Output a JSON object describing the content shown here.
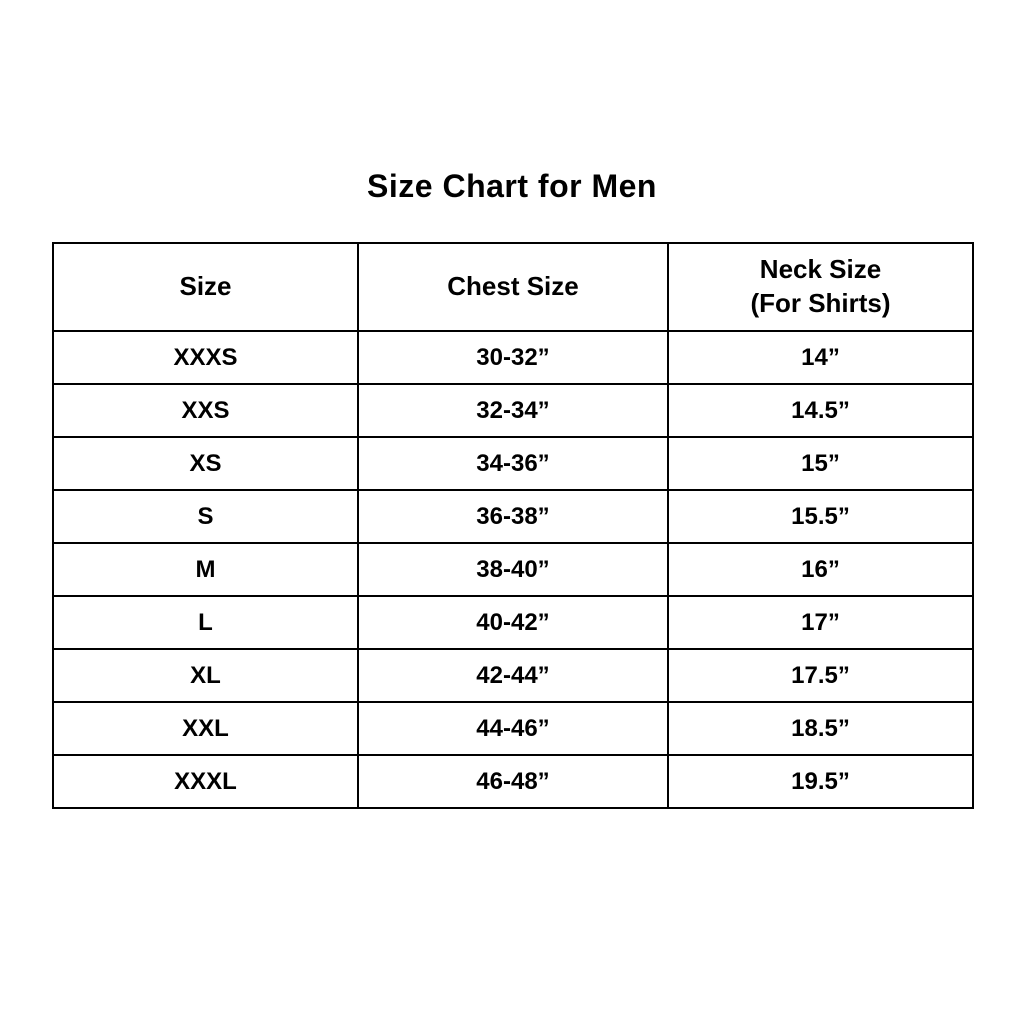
{
  "page": {
    "title": "Size Chart for Men"
  },
  "table": {
    "headers": {
      "size": "Size",
      "chest": "Chest Size",
      "neck_line1": "Neck Size",
      "neck_line2": "(For Shirts)"
    },
    "rows": [
      {
        "size": "XXXS",
        "chest": "30-32”",
        "neck": "14”"
      },
      {
        "size": "XXS",
        "chest": "32-34”",
        "neck": "14.5”"
      },
      {
        "size": "XS",
        "chest": "34-36”",
        "neck": "15”"
      },
      {
        "size": "S",
        "chest": "36-38”",
        "neck": "15.5”"
      },
      {
        "size": "M",
        "chest": "38-40”",
        "neck": "16”"
      },
      {
        "size": "L",
        "chest": "40-42”",
        "neck": "17”"
      },
      {
        "size": "XL",
        "chest": "42-44”",
        "neck": "17.5”"
      },
      {
        "size": "XXL",
        "chest": "44-46”",
        "neck": "18.5”"
      },
      {
        "size": "XXXL",
        "chest": "46-48”",
        "neck": "19.5”"
      }
    ]
  },
  "chart_data": {
    "type": "table",
    "title": "Size Chart for Men",
    "columns": [
      "Size",
      "Chest Size",
      "Neck Size (For Shirts)"
    ],
    "rows": [
      [
        "XXXS",
        "30-32”",
        "14”"
      ],
      [
        "XXS",
        "32-34”",
        "14.5”"
      ],
      [
        "XS",
        "34-36”",
        "15”"
      ],
      [
        "S",
        "36-38”",
        "15.5”"
      ],
      [
        "M",
        "38-40”",
        "16”"
      ],
      [
        "L",
        "40-42”",
        "17”"
      ],
      [
        "XL",
        "42-44”",
        "17.5”"
      ],
      [
        "XXL",
        "44-46”",
        "18.5”"
      ],
      [
        "XXXL",
        "46-48”",
        "19.5”"
      ]
    ],
    "layout": {
      "grid": "on",
      "text_align": "center",
      "font_weight": "bold"
    }
  },
  "colors": {
    "background": "#ffffff",
    "border": "#000000",
    "text": "#000000"
  }
}
